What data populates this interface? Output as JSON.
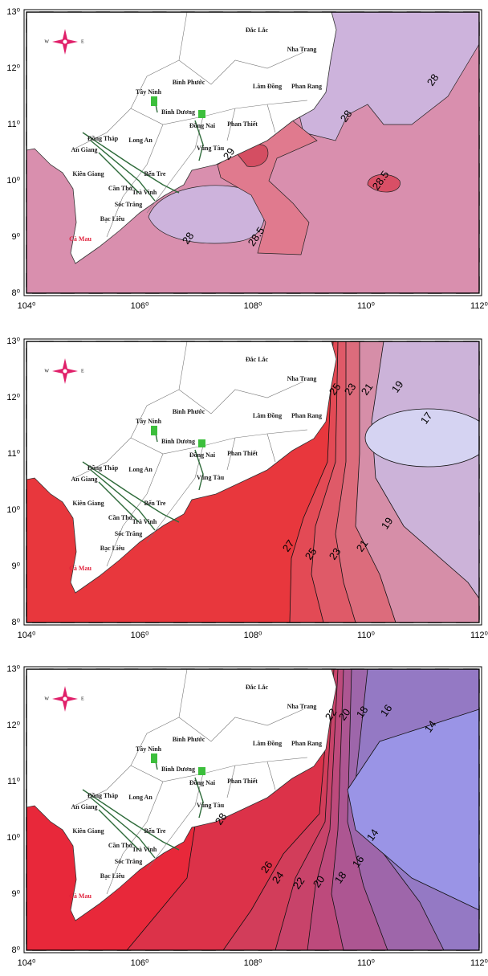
{
  "axes": {
    "lon_labels": [
      "104⁰",
      "106⁰",
      "108⁰",
      "110⁰",
      "112⁰"
    ],
    "lat_labels": [
      "13⁰",
      "12⁰",
      "11⁰",
      "10⁰",
      "9⁰",
      "8⁰"
    ]
  },
  "compass": [
    "W",
    "E"
  ],
  "places": [
    "Đắc Lắc",
    "Nha Trang",
    "Bình Phước",
    "Lâm Đồng",
    "Phan Rang",
    "Tây Ninh",
    "Bình Dương",
    "Đồng Nai",
    "Phan Thiết",
    "Đồng Tháp",
    "Long An",
    "An Giang",
    "Vũng Tàu",
    "Kiên Giang",
    "Bến Tre",
    "Cần Thơ",
    "Trà Vinh",
    "Sóc Trăng",
    "Bạc Liêu",
    "Cà Mau"
  ],
  "panels": [
    {
      "contour_labels": [
        "28",
        "28",
        "29",
        "28.5",
        "28.5",
        "28"
      ]
    },
    {
      "contour_labels": [
        "25",
        "23",
        "21",
        "19",
        "17",
        "27",
        "25",
        "23",
        "21",
        "19"
      ]
    },
    {
      "contour_labels": [
        "22",
        "20",
        "18",
        "16",
        "14",
        "28",
        "26",
        "24",
        "22",
        "20",
        "18",
        "16",
        "14"
      ]
    }
  ]
}
